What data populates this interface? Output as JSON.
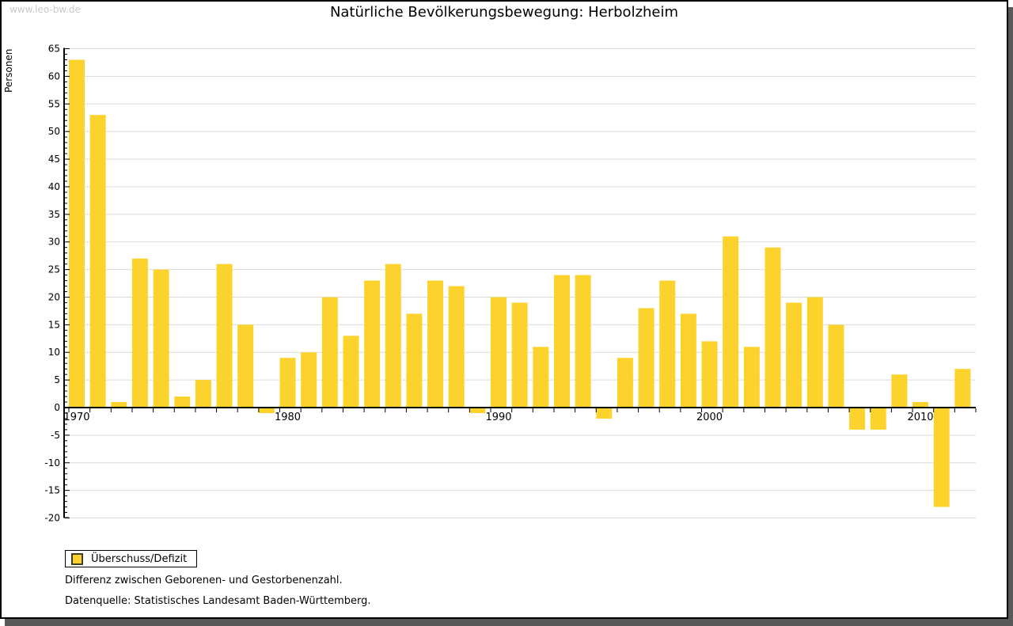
{
  "page": {
    "watermark": "www.leo-bw.de",
    "title": "Natürliche Bevölkerungsbewegung: Herbolzheim"
  },
  "legend": {
    "label": "Überschuss/Defizit"
  },
  "notes": {
    "line1": "Differenz zwischen Geborenen- und Gestorbenenzahl.",
    "line2": "Datenquelle: Statistisches Landesamt Baden-Württemberg."
  },
  "colors": {
    "bar": "#fcd32d",
    "bar_border_legend": "#3f3d20",
    "grid": "#dcdcdc",
    "axis": "#000000",
    "text": "#000000",
    "watermark": "#c9c9c9",
    "page_shadow": "#595959"
  },
  "chart_data": {
    "type": "bar",
    "title": "Natürliche Bevölkerungsbewegung: Herbolzheim",
    "xlabel": "",
    "ylabel": "Personen",
    "ylim": [
      -20,
      65
    ],
    "ytick_major_step": 5,
    "ytick_minor_step": 1,
    "grid": true,
    "legend_position": "bottom-left",
    "series_name": "Überschuss/Defizit",
    "x": [
      1970,
      1971,
      1972,
      1973,
      1974,
      1975,
      1976,
      1977,
      1978,
      1979,
      1980,
      1981,
      1982,
      1983,
      1984,
      1985,
      1986,
      1987,
      1988,
      1989,
      1990,
      1991,
      1992,
      1993,
      1994,
      1995,
      1996,
      1997,
      1998,
      1999,
      2000,
      2001,
      2002,
      2003,
      2004,
      2005,
      2006,
      2007,
      2008,
      2009,
      2010,
      2011,
      2012
    ],
    "values": [
      63,
      53,
      1,
      27,
      25,
      2,
      5,
      26,
      15,
      -1,
      9,
      10,
      20,
      13,
      23,
      26,
      17,
      23,
      22,
      -1,
      20,
      19,
      11,
      24,
      24,
      -2,
      9,
      18,
      23,
      17,
      12,
      31,
      11,
      29,
      19,
      20,
      15,
      -4,
      -4,
      6,
      1,
      -18,
      7
    ],
    "x_axis_decade_labels": [
      "1970",
      "1980",
      "1990",
      "2000",
      "2010"
    ]
  }
}
